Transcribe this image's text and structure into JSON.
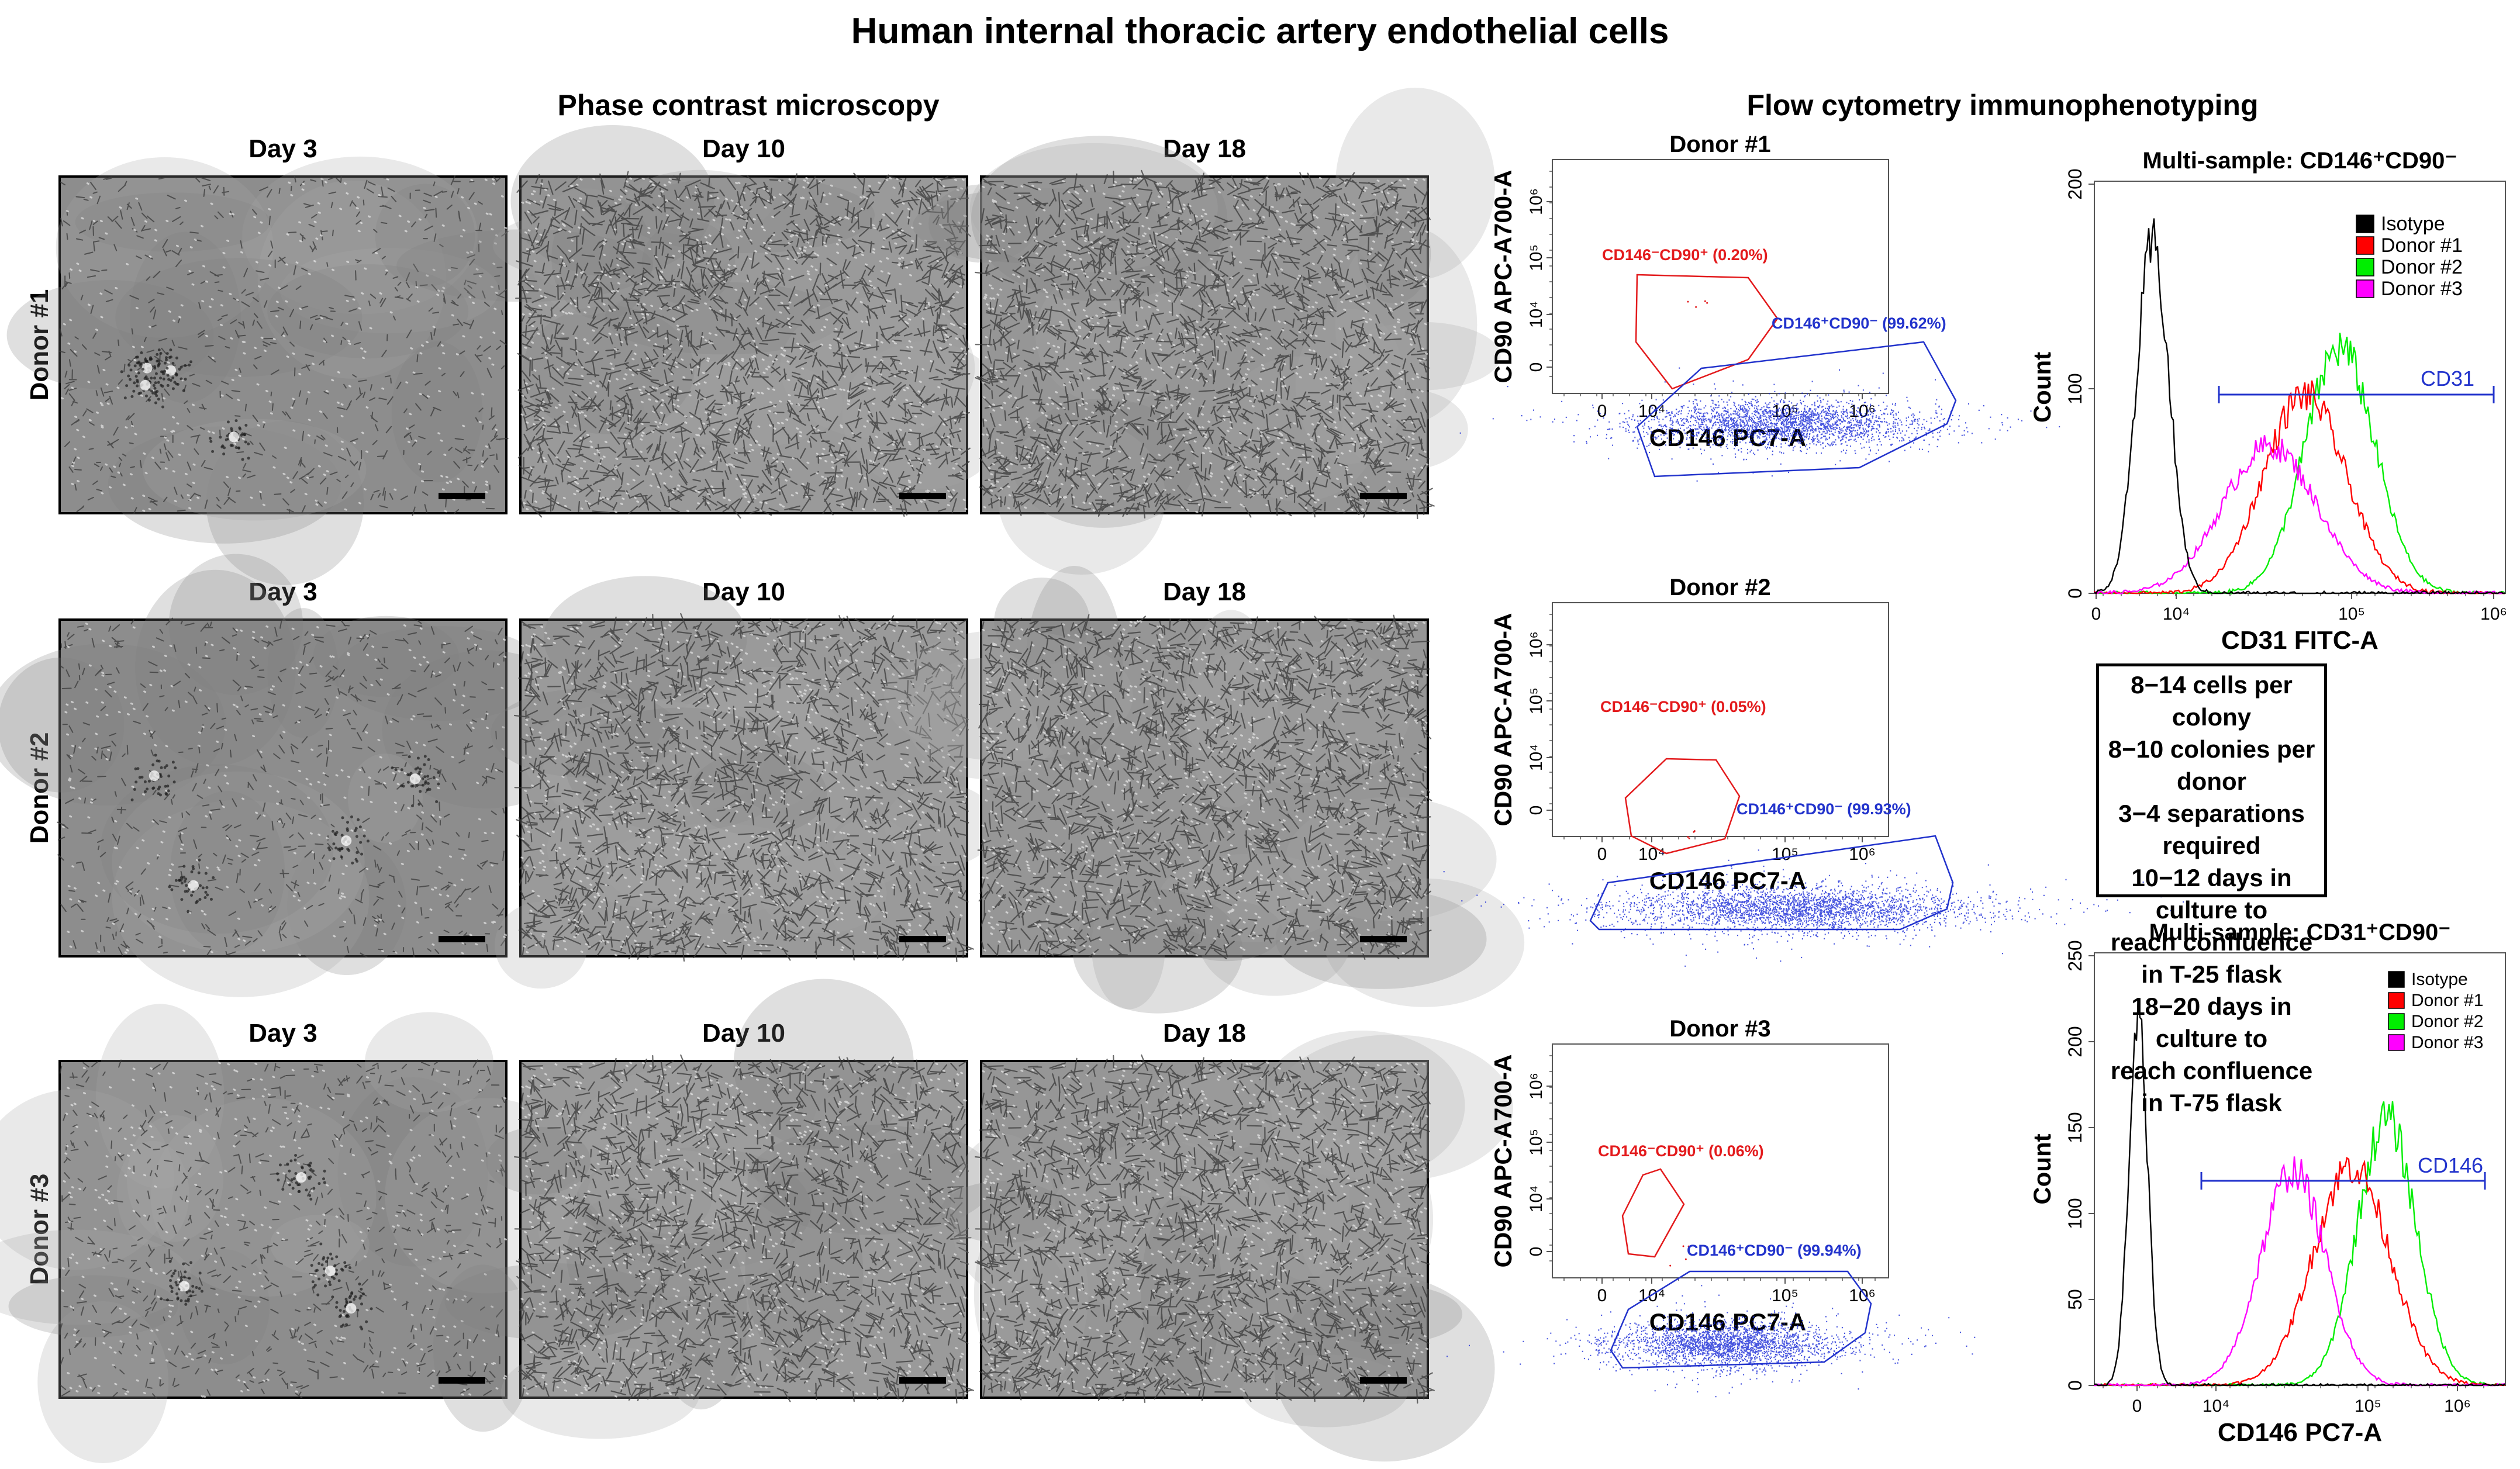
{
  "figure": {
    "title": "Human internal thoracic artery endothelial cells",
    "left_section_title": "Phase contrast microscopy",
    "right_section_title": "Flow cytometry immunophenotyping"
  },
  "microscopy": {
    "days": [
      "Day 3",
      "Day 10",
      "Day 18"
    ],
    "donors": [
      "Donor #1",
      "Donor #2",
      "Donor #3"
    ]
  },
  "flow_scatter": [
    {
      "title": "Donor #1",
      "xlabel": "CD146 PC7-A",
      "ylabel": "CD90 APC-A700-A",
      "xticks": [
        "0",
        "10⁴",
        "10⁵",
        "10⁶"
      ],
      "yticks": [
        "0",
        "10⁴",
        "10⁵",
        "10⁶"
      ],
      "gate_red_label": "CD146⁻CD90⁺ (0.20%)",
      "gate_blue_label": "CD146⁺CD90⁻ (99.62%)",
      "gate_red_color": "#e31a1c",
      "gate_blue_color": "#2233cc"
    },
    {
      "title": "Donor #2",
      "xlabel": "CD146 PC7-A",
      "ylabel": "CD90 APC-A700-A",
      "xticks": [
        "0",
        "10⁴",
        "10⁵",
        "10⁶"
      ],
      "yticks": [
        "0",
        "10⁴",
        "10⁵",
        "10⁶"
      ],
      "gate_red_label": "CD146⁻CD90⁺ (0.05%)",
      "gate_blue_label": "CD146⁺CD90⁻ (99.93%)",
      "gate_red_color": "#e31a1c",
      "gate_blue_color": "#2233cc"
    },
    {
      "title": "Donor #3",
      "xlabel": "CD146 PC7-A",
      "ylabel": "CD90 APC-A700-A",
      "xticks": [
        "0",
        "10⁴",
        "10⁵",
        "10⁶"
      ],
      "yticks": [
        "0",
        "10⁴",
        "10⁵",
        "10⁶"
      ],
      "gate_red_label": "CD146⁻CD90⁺ (0.06%)",
      "gate_blue_label": "CD146⁺CD90⁻ (99.94%)",
      "gate_red_color": "#e31a1c",
      "gate_blue_color": "#2233cc"
    }
  ],
  "histograms": [
    {
      "title": "Multi-sample: CD146⁺CD90⁻",
      "xlabel": "CD31 FITC-A",
      "ylabel": "Count",
      "xticks": [
        "0",
        "10⁴",
        "10⁵",
        "10⁶"
      ],
      "yticks": [
        "0",
        "100",
        "200"
      ],
      "gate_label": "CD31",
      "legend": [
        {
          "label": "Isotype",
          "color": "#000000"
        },
        {
          "label": "Donor #1",
          "color": "#ff0000"
        },
        {
          "label": "Donor #2",
          "color": "#00ee00"
        },
        {
          "label": "Donor #3",
          "color": "#ff00ff"
        }
      ]
    },
    {
      "title": "Multi-sample: CD31⁺CD90⁻",
      "xlabel": "CD146 PC7-A",
      "ylabel": "Count",
      "xticks": [
        "0",
        "10⁴",
        "10⁵",
        "10⁶"
      ],
      "yticks": [
        "0",
        "50",
        "100",
        "150",
        "200",
        "250"
      ],
      "gate_label": "CD146",
      "legend": [
        {
          "label": "Isotype",
          "color": "#000000"
        },
        {
          "label": "Donor #1",
          "color": "#ff0000"
        },
        {
          "label": "Donor #2",
          "color": "#00ee00"
        },
        {
          "label": "Donor #3",
          "color": "#ff00ff"
        }
      ]
    }
  ],
  "info_box": {
    "lines": [
      "8−14 cells per colony",
      "8−10 colonies per donor",
      "3−4 separations required",
      "10−12 days in culture to",
      "reach confluence in T-25 flask",
      "18−20 days in culture to",
      "reach confluence in T-75 flask"
    ]
  },
  "chart_data": [
    {
      "type": "scatter",
      "title": "Donor #1",
      "xlabel": "CD146 PC7-A",
      "ylabel": "CD90 APC-A700-A",
      "x_scale": "biexponential",
      "y_scale": "biexponential",
      "gates": [
        {
          "name": "CD146⁻CD90⁺",
          "percent": 0.2
        },
        {
          "name": "CD146⁺CD90⁻",
          "percent": 99.62
        }
      ]
    },
    {
      "type": "scatter",
      "title": "Donor #2",
      "xlabel": "CD146 PC7-A",
      "ylabel": "CD90 APC-A700-A",
      "x_scale": "biexponential",
      "y_scale": "biexponential",
      "gates": [
        {
          "name": "CD146⁻CD90⁺",
          "percent": 0.05
        },
        {
          "name": "CD146⁺CD90⁻",
          "percent": 99.93
        }
      ]
    },
    {
      "type": "scatter",
      "title": "Donor #3",
      "xlabel": "CD146 PC7-A",
      "ylabel": "CD90 APC-A700-A",
      "x_scale": "biexponential",
      "y_scale": "biexponential",
      "gates": [
        {
          "name": "CD146⁻CD90⁺",
          "percent": 0.06
        },
        {
          "name": "CD146⁺CD90⁻",
          "percent": 99.94
        }
      ]
    },
    {
      "type": "line",
      "title": "Multi-sample: CD146⁺CD90⁻",
      "xlabel": "CD31 FITC-A",
      "ylabel": "Count",
      "ylim": [
        0,
        200
      ],
      "series": [
        {
          "name": "Isotype",
          "peak_count": 170
        },
        {
          "name": "Donor #1",
          "peak_count": 97
        },
        {
          "name": "Donor #2",
          "peak_count": 120
        },
        {
          "name": "Donor #3",
          "peak_count": 72
        }
      ]
    },
    {
      "type": "line",
      "title": "Multi-sample: CD31⁺CD90⁻",
      "xlabel": "CD146 PC7-A",
      "ylabel": "Count",
      "ylim": [
        0,
        250
      ],
      "series": [
        {
          "name": "Isotype",
          "peak_count": 212
        },
        {
          "name": "Donor #1",
          "peak_count": 128
        },
        {
          "name": "Donor #2",
          "peak_count": 155
        },
        {
          "name": "Donor #3",
          "peak_count": 125
        }
      ]
    }
  ]
}
